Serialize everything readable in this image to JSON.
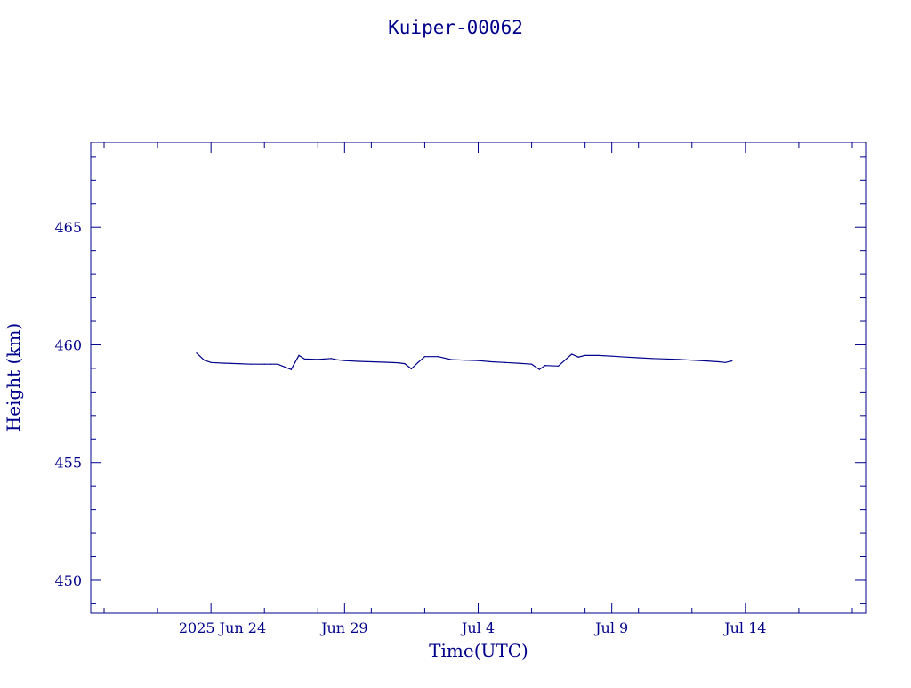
{
  "chart_data": {
    "type": "line",
    "title": "Kuiper-00062",
    "xlabel": "Time(UTC)",
    "ylabel": "Height (km)",
    "ylim": [
      448.6,
      468.6
    ],
    "xlim": [
      "2025-06-19T12:00",
      "2025-07-18T12:00"
    ],
    "y_ticks": [
      450,
      455,
      460,
      465
    ],
    "x_ticks": [
      {
        "date": "2025-06-24",
        "label": "2025 Jun 24"
      },
      {
        "date": "2025-06-29",
        "label": "Jun 29"
      },
      {
        "date": "2025-07-04",
        "label": "Jul  4"
      },
      {
        "date": "2025-07-09",
        "label": "Jul  9"
      },
      {
        "date": "2025-07-14",
        "label": "Jul 14"
      }
    ],
    "grid": false,
    "color": "#00008B",
    "series": [
      {
        "x": [
          "2025-06-23T11:00",
          "2025-06-23T18:00",
          "2025-06-24T00:00",
          "2025-06-24T12:00",
          "2025-06-25T00:00",
          "2025-06-25T12:00",
          "2025-06-26T00:00",
          "2025-06-26T06:00",
          "2025-06-26T12:00",
          "2025-06-27T00:00",
          "2025-06-27T07:00",
          "2025-06-27T12:00",
          "2025-06-28T00:00",
          "2025-06-28T12:00",
          "2025-06-28T18:00",
          "2025-06-29T00:00",
          "2025-06-29T12:00",
          "2025-06-30T00:00",
          "2025-06-30T12:00",
          "2025-07-01T00:00",
          "2025-07-01T06:00",
          "2025-07-01T12:00",
          "2025-07-01T18:00",
          "2025-07-02T00:00",
          "2025-07-02T12:00",
          "2025-07-03T00:00",
          "2025-07-03T12:00",
          "2025-07-04T00:00",
          "2025-07-04T12:00",
          "2025-07-05T00:00",
          "2025-07-05T12:00",
          "2025-07-06T00:00",
          "2025-07-06T07:00",
          "2025-07-06T12:00",
          "2025-07-07T00:00",
          "2025-07-07T12:00",
          "2025-07-07T18:00",
          "2025-07-08T00:00",
          "2025-07-08T12:00",
          "2025-07-09T00:00",
          "2025-07-09T12:00",
          "2025-07-10T00:00",
          "2025-07-10T12:00",
          "2025-07-11T00:00",
          "2025-07-11T12:00",
          "2025-07-12T00:00",
          "2025-07-12T12:00",
          "2025-07-13T00:00",
          "2025-07-13T06:00",
          "2025-07-13T12:00"
        ],
        "y": [
          459.65,
          459.35,
          459.25,
          459.22,
          459.2,
          459.18,
          459.18,
          459.18,
          459.18,
          458.95,
          459.55,
          459.4,
          459.38,
          459.42,
          459.36,
          459.33,
          459.3,
          459.28,
          459.26,
          459.24,
          459.2,
          458.98,
          459.25,
          459.5,
          459.5,
          459.37,
          459.35,
          459.33,
          459.28,
          459.25,
          459.22,
          459.18,
          458.95,
          459.12,
          459.1,
          459.6,
          459.48,
          459.55,
          459.55,
          459.52,
          459.48,
          459.45,
          459.42,
          459.4,
          459.38,
          459.35,
          459.32,
          459.28,
          459.25,
          459.32
        ]
      }
    ]
  }
}
